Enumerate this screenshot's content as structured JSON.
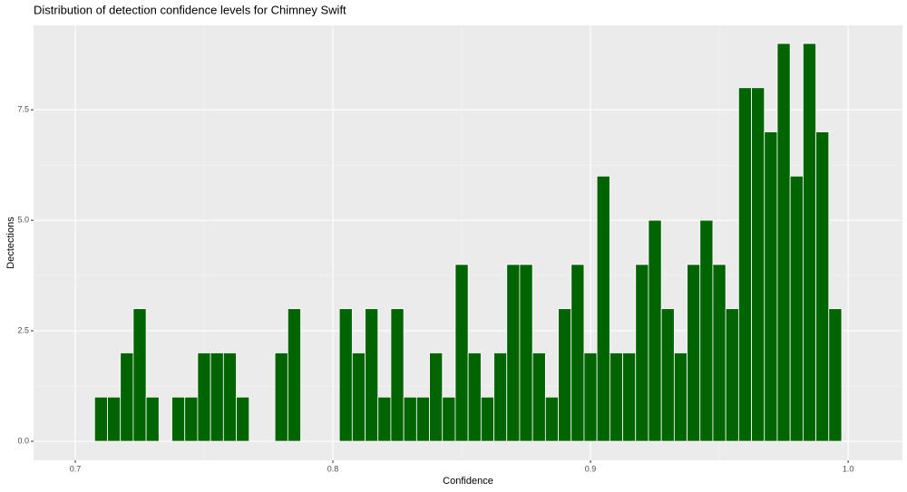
{
  "chart_data": {
    "type": "histogram",
    "title": "Distribution of detection confidence levels for Chimney Swift",
    "x_label": "Confidence",
    "y_label": "Dectections",
    "bins": [
      0.7075,
      0.7125,
      0.7175,
      0.7225,
      0.7275,
      0.7325,
      0.7375,
      0.7425,
      0.7475,
      0.7525,
      0.7575,
      0.7625,
      0.7675,
      0.7725,
      0.7775,
      0.7825,
      0.7875,
      0.7925,
      0.7975,
      0.8025,
      0.8075,
      0.8125,
      0.8175,
      0.8225,
      0.8275,
      0.8325,
      0.8375,
      0.8425,
      0.8475,
      0.8525,
      0.8575,
      0.8625,
      0.8675,
      0.8725,
      0.8775,
      0.8825,
      0.8875,
      0.8925,
      0.8975,
      0.9025,
      0.9075,
      0.9125,
      0.9175,
      0.9225,
      0.9275,
      0.9325,
      0.9375,
      0.9425,
      0.9475,
      0.9525,
      0.9575,
      0.9625,
      0.9675,
      0.9725,
      0.9775,
      0.9825,
      0.9875,
      0.9925,
      0.9975
    ],
    "values": [
      1,
      1,
      2,
      3,
      1,
      0,
      1,
      1,
      2,
      2,
      2,
      1,
      0,
      0,
      2,
      3,
      0,
      0,
      0,
      3,
      2,
      3,
      1,
      3,
      1,
      1,
      2,
      1,
      4,
      2,
      1,
      2,
      4,
      4,
      2,
      1,
      3,
      4,
      2,
      6,
      2,
      2,
      4,
      5,
      3,
      2,
      4,
      5,
      4,
      3,
      8,
      8,
      7,
      9,
      6,
      9,
      7,
      3
    ],
    "color": "#006400",
    "xlim": [
      0.6838,
      1.0211
    ],
    "ylim": [
      -0.43,
      9.41
    ],
    "xticks": [
      0.7,
      0.8,
      0.9,
      {
        "value": 1.0,
        "label": "1.0"
      }
    ],
    "yticks": [
      {
        "value": 0,
        "label": "0.0"
      },
      2.5,
      {
        "value": 5,
        "label": "5.0"
      },
      7.5
    ],
    "grid": true
  }
}
